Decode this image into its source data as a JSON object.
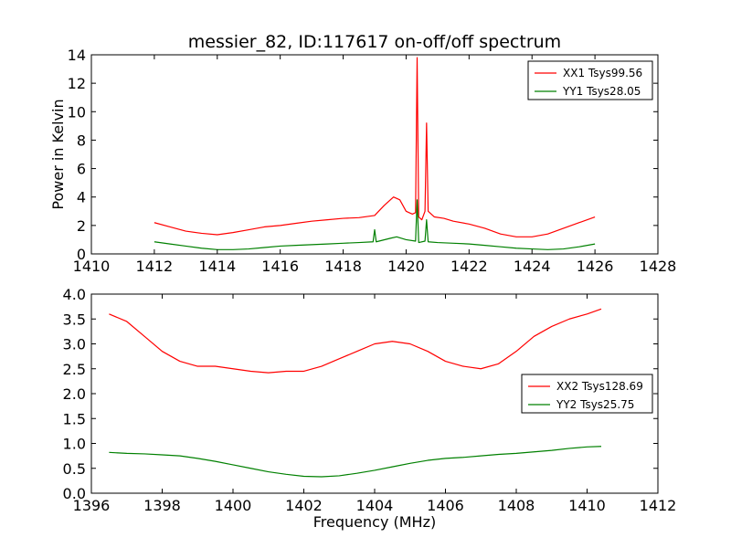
{
  "chart_data": [
    {
      "type": "line",
      "title": "messier_82, ID:117617 on-off/off spectrum",
      "xlabel": "",
      "ylabel": "Power in Kelvin",
      "xlim": [
        1410,
        1428
      ],
      "ylim": [
        0,
        14
      ],
      "xticks": [
        1410,
        1412,
        1414,
        1416,
        1418,
        1420,
        1422,
        1424,
        1426,
        1428
      ],
      "yticks": [
        0,
        2,
        4,
        6,
        8,
        10,
        12,
        14
      ],
      "legend_position": "top-right",
      "series": [
        {
          "name": "XX1 Tsys99.56",
          "color": "#ff0000",
          "x": [
            1412,
            1412.5,
            1413,
            1413.5,
            1414,
            1414.5,
            1415,
            1415.5,
            1416,
            1416.5,
            1417,
            1417.5,
            1418,
            1418.5,
            1419,
            1419.3,
            1419.6,
            1419.8,
            1420,
            1420.2,
            1420.3,
            1420.35,
            1420.4,
            1420.5,
            1420.6,
            1420.65,
            1420.7,
            1420.9,
            1421.2,
            1421.5,
            1422,
            1422.5,
            1423,
            1423.5,
            1424,
            1424.5,
            1425,
            1425.5,
            1426
          ],
          "values": [
            2.2,
            1.9,
            1.6,
            1.45,
            1.35,
            1.5,
            1.7,
            1.9,
            2.0,
            2.15,
            2.3,
            2.4,
            2.5,
            2.55,
            2.7,
            3.4,
            4.0,
            3.8,
            3.0,
            2.8,
            2.9,
            13.8,
            2.6,
            2.4,
            3.0,
            9.2,
            3.0,
            2.6,
            2.5,
            2.3,
            2.1,
            1.8,
            1.4,
            1.2,
            1.2,
            1.4,
            1.8,
            2.2,
            2.6
          ]
        },
        {
          "name": "YY1 Tsys28.05",
          "color": "#008000",
          "x": [
            1412,
            1412.5,
            1413,
            1413.5,
            1414,
            1414.5,
            1415,
            1415.5,
            1416,
            1416.5,
            1417,
            1417.5,
            1418,
            1418.5,
            1418.95,
            1419.0,
            1419.05,
            1419.5,
            1419.7,
            1420,
            1420.3,
            1420.35,
            1420.4,
            1420.6,
            1420.65,
            1420.7,
            1421,
            1421.5,
            1422,
            1422.5,
            1423,
            1423.5,
            1424,
            1424.5,
            1425,
            1425.5,
            1426
          ],
          "values": [
            0.85,
            0.7,
            0.55,
            0.4,
            0.3,
            0.3,
            0.35,
            0.45,
            0.55,
            0.6,
            0.65,
            0.7,
            0.75,
            0.8,
            0.85,
            1.7,
            0.85,
            1.1,
            1.2,
            1.0,
            0.9,
            3.8,
            0.8,
            0.9,
            2.4,
            0.85,
            0.8,
            0.75,
            0.7,
            0.6,
            0.5,
            0.4,
            0.35,
            0.3,
            0.35,
            0.5,
            0.7
          ]
        }
      ]
    },
    {
      "type": "line",
      "title": "",
      "xlabel": "Frequency (MHz)",
      "ylabel": "",
      "xlim": [
        1396,
        1412
      ],
      "ylim": [
        0,
        4
      ],
      "xticks": [
        1396,
        1398,
        1400,
        1402,
        1404,
        1406,
        1408,
        1410,
        1412
      ],
      "yticks": [
        "0.0",
        "0.5",
        "1.0",
        "1.5",
        "2.0",
        "2.5",
        "3.0",
        "3.5",
        "4.0"
      ],
      "legend_position": "center-right",
      "series": [
        {
          "name": "XX2 Tsys128.69",
          "color": "#ff0000",
          "x": [
            1396.5,
            1397,
            1397.5,
            1398,
            1398.5,
            1399,
            1399.5,
            1400,
            1400.5,
            1401,
            1401.5,
            1402,
            1402.5,
            1403,
            1403.5,
            1404,
            1404.5,
            1405,
            1405.5,
            1406,
            1406.5,
            1407,
            1407.5,
            1408,
            1408.5,
            1409,
            1409.5,
            1410,
            1410.4
          ],
          "values": [
            3.6,
            3.45,
            3.15,
            2.85,
            2.65,
            2.55,
            2.55,
            2.5,
            2.45,
            2.42,
            2.45,
            2.45,
            2.55,
            2.7,
            2.85,
            3.0,
            3.05,
            3.0,
            2.85,
            2.65,
            2.55,
            2.5,
            2.6,
            2.85,
            3.15,
            3.35,
            3.5,
            3.6,
            3.7
          ]
        },
        {
          "name": "YY2 Tsys25.75",
          "color": "#008000",
          "x": [
            1396.5,
            1397,
            1397.5,
            1398,
            1398.5,
            1399,
            1399.5,
            1400,
            1400.5,
            1401,
            1401.5,
            1402,
            1402.5,
            1403,
            1403.5,
            1404,
            1404.5,
            1405,
            1405.5,
            1406,
            1406.5,
            1407,
            1407.5,
            1408,
            1408.5,
            1409,
            1409.5,
            1410,
            1410.4
          ],
          "values": [
            0.82,
            0.8,
            0.79,
            0.77,
            0.75,
            0.7,
            0.64,
            0.57,
            0.5,
            0.43,
            0.38,
            0.34,
            0.33,
            0.35,
            0.4,
            0.46,
            0.53,
            0.6,
            0.66,
            0.7,
            0.72,
            0.75,
            0.78,
            0.8,
            0.83,
            0.86,
            0.9,
            0.93,
            0.94
          ]
        }
      ]
    }
  ]
}
